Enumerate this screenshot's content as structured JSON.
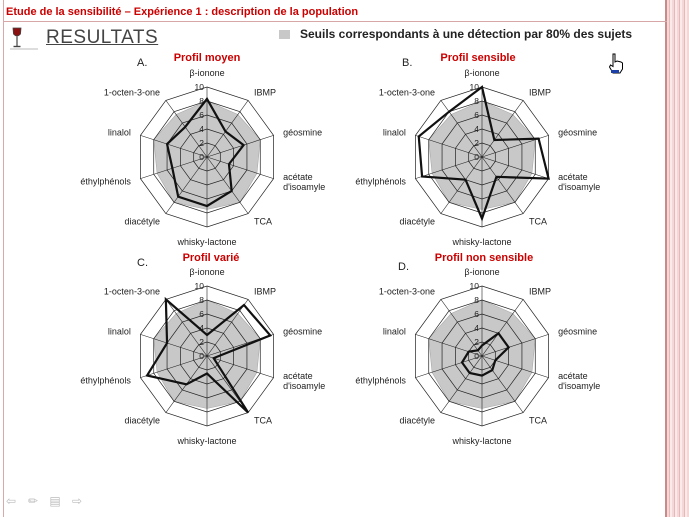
{
  "header": {
    "title": "Etude de la sensibilité – Expérience 1 : description de la population"
  },
  "section": {
    "title": "RESULTATS"
  },
  "legend": {
    "label": "Seuils correspondants à une détection par 80% des sujets",
    "swatch_color": "#c8c8c8"
  },
  "colors": {
    "title_red": "#cc0000",
    "profile_line": "#111111",
    "threshold_fill": "#c8c8c8",
    "grid": "#222222",
    "accent_band": "#e9b7b7"
  },
  "icons": {
    "wine_glass": "wine-glass-icon",
    "cursor": "hand-cursor-icon",
    "nav_prev": "arrow-left-icon",
    "nav_pen": "pen-icon",
    "nav_menu": "menu-icon",
    "nav_next": "arrow-right-icon"
  },
  "chart_data": [
    {
      "type": "radar",
      "letter": "A.",
      "title": "Profil moyen",
      "axes": [
        "β-ionone",
        "IBMP",
        "géosmine",
        "acétate\nd'isoamyle",
        "TCA",
        "whisky-lactone",
        "diacétyle",
        "éthylphénols",
        "linalol",
        "1-octen-3-one"
      ],
      "rticks": [
        "0",
        "2",
        "4",
        "6",
        "8",
        "10"
      ],
      "rlim": [
        0,
        10
      ],
      "series": [
        {
          "values": [
            8,
            7.5,
            8,
            7.5,
            8,
            7.5,
            8,
            7.5,
            8,
            7.5
          ]
        },
        {
          "values": [
            8.3,
            4.5,
            5.5,
            3.3,
            6.0,
            7.0,
            7.0,
            5.2,
            6.0,
            5.3
          ]
        }
      ]
    },
    {
      "type": "radar",
      "letter": "B.",
      "title": "Profil sensible",
      "axes": [
        "β-ionone",
        "IBMP",
        "géosmine",
        "acétate\nd'isoamyle",
        "TCA",
        "whisky-lactone",
        "diacétyle",
        "éthylphénols",
        "linalol",
        "1-octen-3-one"
      ],
      "rticks": [
        "0",
        "2",
        "4",
        "6",
        "8",
        "10"
      ],
      "rlim": [
        0,
        10
      ],
      "series": [
        {
          "values": [
            8,
            7.5,
            8,
            7.5,
            8,
            7.5,
            8,
            7.5,
            8,
            7.5
          ]
        },
        {
          "values": [
            10,
            3.0,
            8.5,
            10,
            3.5,
            8.8,
            4.0,
            9.0,
            9.5,
            8.0
          ]
        }
      ]
    },
    {
      "type": "radar",
      "letter": "C.",
      "title": "Profil varié",
      "axes": [
        "β-ionone",
        "IBMP",
        "géosmine",
        "acétate\nd'isoamyle",
        "TCA",
        "whisky-lactone",
        "diacétyle",
        "éthylphénols",
        "linalol",
        "1-octen-3-one"
      ],
      "rticks": [
        "0",
        "2",
        "4",
        "6",
        "8",
        "10"
      ],
      "rlim": [
        0,
        10
      ],
      "series": [
        {
          "values": [
            8,
            7.5,
            8,
            7.5,
            8,
            7.5,
            8,
            7.5,
            8,
            7.5
          ]
        },
        {
          "values": [
            3.0,
            9.0,
            9.5,
            1.0,
            10,
            2.5,
            5.0,
            9.0,
            6.0,
            10
          ]
        }
      ]
    },
    {
      "type": "radar",
      "letter": "D.",
      "title": "Profil non sensible",
      "axes": [
        "β-ionone",
        "IBMP",
        "géosmine",
        "acétate\nd'isoamyle",
        "TCA",
        "whisky-lactone",
        "diacétyle",
        "éthylphénols",
        "linalol",
        "1-octen-3-one"
      ],
      "rticks": [
        "0",
        "2",
        "4",
        "6",
        "8",
        "10"
      ],
      "rlim": [
        0,
        10
      ],
      "series": [
        {
          "values": [
            8,
            7.5,
            8,
            7.5,
            8,
            7.5,
            8,
            7.5,
            8,
            7.5
          ]
        },
        {
          "values": [
            1.5,
            4.0,
            4.0,
            2.0,
            2.5,
            2.8,
            3.0,
            3.0,
            2.0,
            1.0
          ]
        }
      ]
    }
  ]
}
